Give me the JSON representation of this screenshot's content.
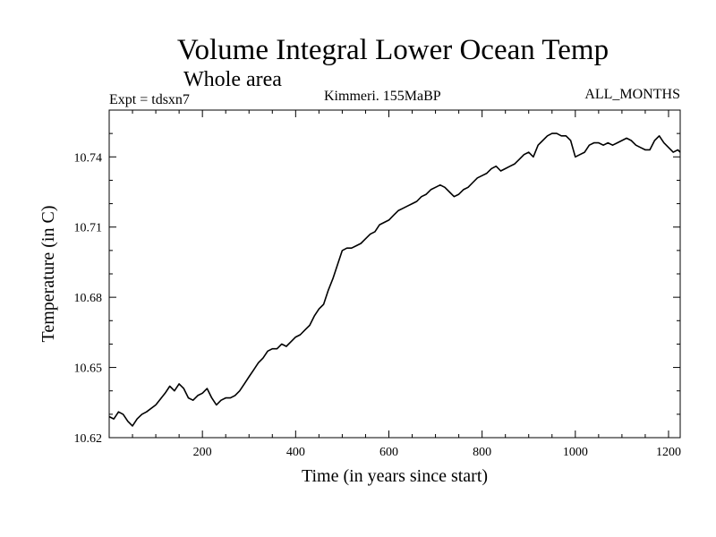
{
  "header": {
    "title": "Volume Integral Lower Ocean Temp",
    "subtitle": "Whole area",
    "experiment": "Expt = tdsxn7",
    "period": "Kimmeri. 155MaBP",
    "months": "ALL_MONTHS"
  },
  "chart_data": {
    "type": "line",
    "title": "Volume Integral Lower Ocean Temp",
    "subtitle": "Whole area",
    "xlabel": "Time (in years since start)",
    "ylabel": "Temperature (in C)",
    "xlim": [
      0,
      1225
    ],
    "ylim": [
      10.62,
      10.76
    ],
    "xticks": [
      200,
      400,
      600,
      800,
      1000,
      1200
    ],
    "yticks": [
      10.62,
      10.65,
      10.68,
      10.71,
      10.74
    ],
    "ytick_labels": [
      "10.62",
      "10.65",
      "10.68",
      "10.71",
      "10.74"
    ],
    "grid": false,
    "line_color": "#000000",
    "series": [
      {
        "name": "tdsxn7",
        "x": [
          0,
          10,
          20,
          30,
          40,
          50,
          60,
          70,
          80,
          100,
          120,
          130,
          140,
          150,
          160,
          170,
          180,
          190,
          200,
          210,
          220,
          230,
          240,
          250,
          260,
          270,
          280,
          290,
          300,
          310,
          320,
          330,
          340,
          350,
          360,
          370,
          380,
          390,
          400,
          410,
          420,
          430,
          440,
          450,
          460,
          470,
          480,
          490,
          500,
          510,
          520,
          530,
          540,
          550,
          560,
          570,
          580,
          590,
          600,
          610,
          620,
          630,
          640,
          650,
          660,
          670,
          680,
          690,
          700,
          710,
          720,
          730,
          740,
          750,
          760,
          770,
          780,
          790,
          800,
          810,
          820,
          830,
          840,
          850,
          860,
          870,
          880,
          890,
          900,
          910,
          920,
          930,
          940,
          950,
          960,
          970,
          980,
          990,
          1000,
          1010,
          1020,
          1030,
          1040,
          1050,
          1060,
          1070,
          1080,
          1090,
          1100,
          1110,
          1120,
          1130,
          1140,
          1150,
          1160,
          1170,
          1180,
          1190,
          1200,
          1210,
          1220,
          1225
        ],
        "y": [
          10.629,
          10.628,
          10.631,
          10.63,
          10.627,
          10.625,
          10.628,
          10.63,
          10.631,
          10.634,
          10.639,
          10.642,
          10.64,
          10.643,
          10.641,
          10.637,
          10.636,
          10.638,
          10.639,
          10.641,
          10.637,
          10.634,
          10.636,
          10.637,
          10.637,
          10.638,
          10.64,
          10.643,
          10.646,
          10.649,
          10.652,
          10.654,
          10.657,
          10.658,
          10.658,
          10.66,
          10.659,
          10.661,
          10.663,
          10.664,
          10.666,
          10.668,
          10.672,
          10.675,
          10.677,
          10.683,
          10.688,
          10.694,
          10.7,
          10.701,
          10.701,
          10.702,
          10.703,
          10.705,
          10.707,
          10.708,
          10.711,
          10.712,
          10.713,
          10.715,
          10.717,
          10.718,
          10.719,
          10.72,
          10.721,
          10.723,
          10.724,
          10.726,
          10.727,
          10.728,
          10.727,
          10.725,
          10.723,
          10.724,
          10.726,
          10.727,
          10.729,
          10.731,
          10.732,
          10.733,
          10.735,
          10.736,
          10.734,
          10.735,
          10.736,
          10.737,
          10.739,
          10.741,
          10.742,
          10.74,
          10.745,
          10.747,
          10.749,
          10.75,
          10.75,
          10.749,
          10.749,
          10.747,
          10.74,
          10.741,
          10.742,
          10.745,
          10.746,
          10.746,
          10.745,
          10.746,
          10.745,
          10.746,
          10.747,
          10.748,
          10.747,
          10.745,
          10.744,
          10.743,
          10.743,
          10.747,
          10.749,
          10.746,
          10.744,
          10.742,
          10.743,
          10.742
        ]
      }
    ]
  }
}
